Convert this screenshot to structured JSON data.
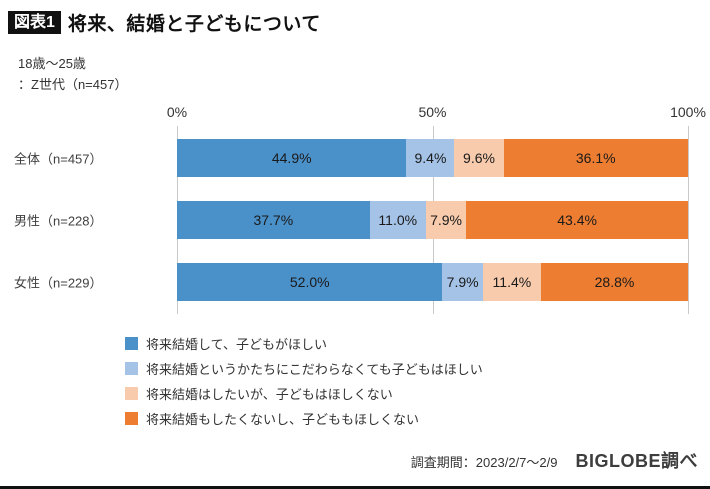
{
  "title": {
    "tag": "図表1",
    "text": "将来、結婚と子どもについて"
  },
  "subtitle": {
    "line1": "18歳〜25歳",
    "line2": "：Z世代（n=457）"
  },
  "chart_data": {
    "type": "bar",
    "stacked": true,
    "orientation": "horizontal",
    "categories": [
      "全体（n=457）",
      "男性（n=228）",
      "女性（n=229）"
    ],
    "series": [
      {
        "name": "将来結婚して、子どもがほしい",
        "color": "#4a90c9",
        "values": [
          44.9,
          37.7,
          52.0
        ]
      },
      {
        "name": "将来結婚というかたちにこだわらなくても子どもはほしい",
        "color": "#a4c3e6",
        "values": [
          9.4,
          11.0,
          7.9
        ]
      },
      {
        "name": "将来結婚はしたいが、子どもはほしくない",
        "color": "#f8cbad",
        "values": [
          9.6,
          7.9,
          11.4
        ]
      },
      {
        "name": "将来結婚もしたくないし、子どももほしくない",
        "color": "#ed7d31",
        "values": [
          36.1,
          43.4,
          28.8
        ]
      }
    ],
    "xlim": [
      0,
      100
    ],
    "xticks": [
      "0%",
      "50%",
      "100%"
    ],
    "grid": true,
    "legend_position": "bottom"
  },
  "footer": {
    "period": "調査期間：2023/2/7〜2/9",
    "source": "BIGLOBE調べ"
  }
}
